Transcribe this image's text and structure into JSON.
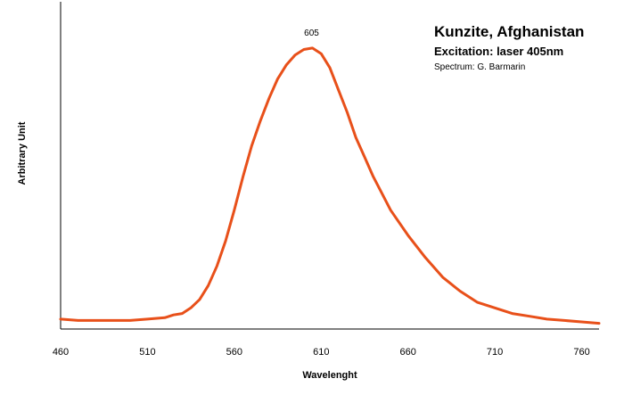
{
  "chart_data": {
    "type": "line",
    "title": "",
    "xlabel": "Wavelenght",
    "ylabel": "Arbitrary Unit",
    "xlim": [
      460,
      770
    ],
    "ylim": [
      0,
      1.05
    ],
    "x_ticks": [
      "460",
      "510",
      "560",
      "610",
      "660",
      "710",
      "760"
    ],
    "grid": false,
    "legend": "none",
    "annotations": {
      "title": "Kunzite,  Afghanistan",
      "excitation": "Excitation: laser 405nm",
      "credit": "Spectrum: G. Barmarin",
      "peak_label": "605"
    },
    "peak": {
      "x": 605,
      "y": 0.98
    },
    "series": [
      {
        "color": "#e8501a",
        "x": [
          460,
          470,
          480,
          490,
          500,
          510,
          520,
          525,
          530,
          535,
          540,
          545,
          550,
          555,
          560,
          565,
          570,
          575,
          580,
          585,
          590,
          595,
          600,
          605,
          610,
          615,
          620,
          625,
          630,
          635,
          640,
          645,
          650,
          660,
          670,
          680,
          690,
          700,
          710,
          720,
          730,
          740,
          750,
          760,
          770
        ],
        "y": [
          0.01,
          0.005,
          0.005,
          0.005,
          0.005,
          0.01,
          0.015,
          0.025,
          0.03,
          0.05,
          0.08,
          0.13,
          0.2,
          0.29,
          0.4,
          0.52,
          0.63,
          0.72,
          0.8,
          0.87,
          0.92,
          0.955,
          0.975,
          0.98,
          0.96,
          0.91,
          0.83,
          0.75,
          0.66,
          0.59,
          0.52,
          0.46,
          0.4,
          0.31,
          0.23,
          0.16,
          0.11,
          0.07,
          0.05,
          0.03,
          0.02,
          0.01,
          0.005,
          0.0,
          -0.005
        ]
      }
    ]
  }
}
